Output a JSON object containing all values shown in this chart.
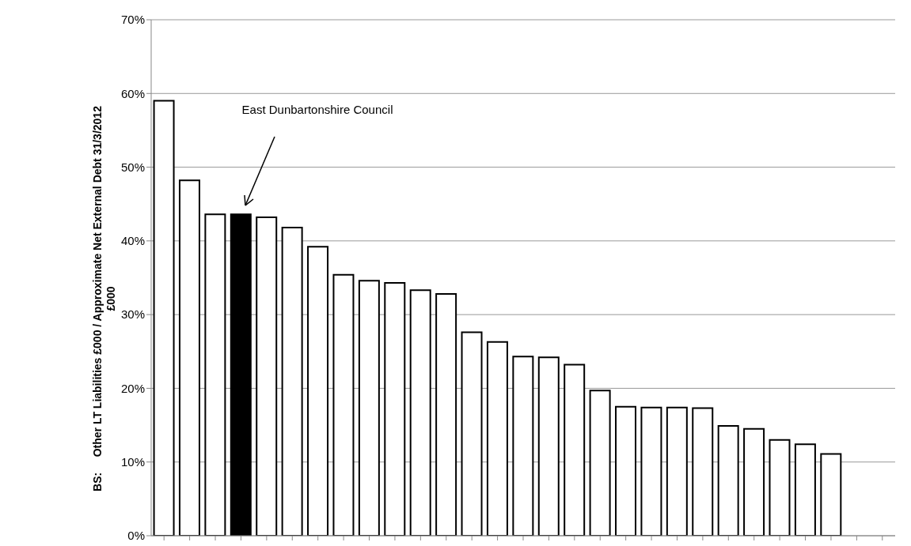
{
  "chart_data": {
    "type": "bar",
    "ylabel": "BS:     Other LT Liabilities £000 / Approximate Net External Debt 31/3/2012\n£000",
    "categories": [
      null,
      null,
      null,
      null,
      null,
      null,
      null,
      null,
      null,
      null,
      null,
      null,
      null,
      null,
      null,
      null,
      null,
      null,
      null,
      null,
      null,
      null,
      null,
      null,
      null,
      null,
      null,
      null,
      null
    ],
    "values": [
      59,
      48.2,
      43.6,
      43.6,
      43.2,
      41.8,
      39.2,
      35.4,
      34.6,
      34.3,
      33.3,
      32.8,
      27.6,
      26.3,
      24.3,
      24.2,
      23.2,
      19.7,
      17.5,
      17.4,
      17.4,
      17.3,
      14.9,
      14.5,
      13.0,
      12.4,
      11.1,
      null,
      null
    ],
    "colors": [
      "#ffffff",
      "#ffffff",
      "#ffffff",
      "#000000",
      "#ffffff",
      "#ffffff",
      "#ffffff",
      "#ffffff",
      "#ffffff",
      "#ffffff",
      "#ffffff",
      "#ffffff",
      "#ffffff",
      "#ffffff",
      "#ffffff",
      "#ffffff",
      "#ffffff",
      "#ffffff",
      "#ffffff",
      "#ffffff",
      "#ffffff",
      "#ffffff",
      "#ffffff",
      "#ffffff",
      "#ffffff",
      "#ffffff",
      "#ffffff",
      "#ffffff",
      "#ffffff"
    ],
    "ylim": [
      0,
      70
    ],
    "yticks": [
      {
        "value": 0,
        "label": "0%"
      },
      {
        "value": 10,
        "label": "10%"
      },
      {
        "value": 20,
        "label": "20%"
      },
      {
        "value": 30,
        "label": "30%"
      },
      {
        "value": 40,
        "label": "40%"
      },
      {
        "value": 50,
        "label": "50%"
      },
      {
        "value": 60,
        "label": "60%"
      },
      {
        "value": 70,
        "label": "70%"
      }
    ],
    "grid": "y",
    "annotations": [
      "East Dunbartonshire Council"
    ]
  }
}
